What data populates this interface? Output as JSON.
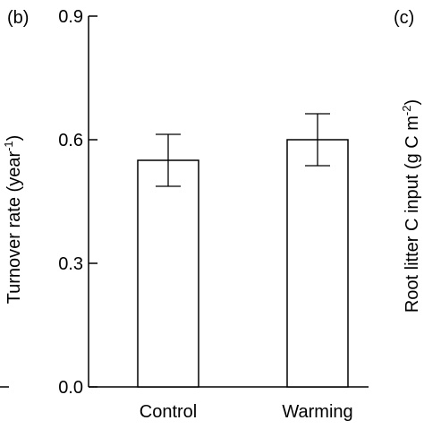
{
  "chart_data": {
    "type": "bar",
    "panel_label": "(b)",
    "next_panel_label": "(c)",
    "categories": [
      "Control",
      "Warming"
    ],
    "values": [
      0.55,
      0.6
    ],
    "errors": [
      0.063,
      0.063
    ],
    "ylabel": "Turnover rate (year",
    "ylabel_sup": "-1",
    "ylabel_close": ")",
    "ylim": [
      0.0,
      0.9
    ],
    "yticks": [
      "0.0",
      "0.3",
      "0.6",
      "0.9"
    ],
    "ytick_values": [
      0.0,
      0.3,
      0.6,
      0.9
    ],
    "right_partial_ylabel": "Root litter C input (g C m",
    "right_partial_ylabel_sup": "-2",
    "right_partial_ylabel_close": ")",
    "bar_fill": "#ffffff",
    "stroke": "#000000",
    "grid": false
  }
}
